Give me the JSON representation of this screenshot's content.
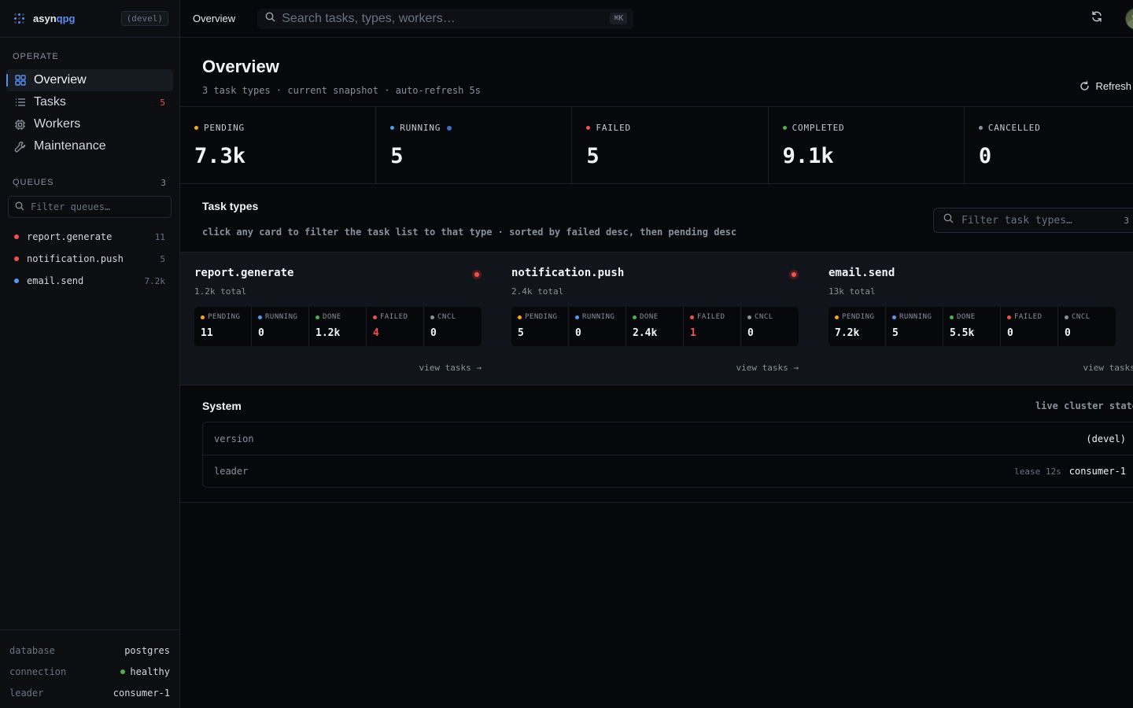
{
  "brand": {
    "name_prefix": "asyn",
    "name_accent": "qpg",
    "env": "(devel)"
  },
  "colors": {
    "accent": "#5b8def",
    "pending": "#f5a623",
    "running": "#4f9cf0",
    "failed": "#ef5350",
    "completed": "#4caf50",
    "cancelled": "#8a909c"
  },
  "sidebar": {
    "operate_label": "OPERATE",
    "nav": [
      {
        "label": "Overview",
        "icon": "grid-icon",
        "active": true,
        "count": ""
      },
      {
        "label": "Tasks",
        "icon": "list-icon",
        "count": "5"
      },
      {
        "label": "Workers",
        "icon": "cpu-icon",
        "count": ""
      },
      {
        "label": "Maintenance",
        "icon": "wrench-icon",
        "count": ""
      }
    ],
    "queues_label": "QUEUES",
    "queues_count": "3",
    "queue_filter_placeholder": "Filter queues…",
    "queues": [
      {
        "name": "report.generate",
        "count": "11",
        "status": "failed"
      },
      {
        "name": "notification.push",
        "count": "5",
        "status": "failed"
      },
      {
        "name": "email.send",
        "count": "7.2k",
        "status": "running"
      }
    ],
    "footer": [
      {
        "key": "database",
        "value": "postgres"
      },
      {
        "key": "connection",
        "value": "healthy",
        "status": "completed"
      },
      {
        "key": "leader",
        "value": "consumer-1"
      }
    ]
  },
  "topbar": {
    "crumb": "Overview",
    "search_placeholder": "Search tasks, types, workers…",
    "shortcut": "⌘K"
  },
  "header": {
    "title": "Overview",
    "subtitle": "3 task types · current snapshot · auto-refresh 5s",
    "refresh_label": "Refresh"
  },
  "stats": [
    {
      "label": "PENDING",
      "value": "7.3k",
      "status": "pending"
    },
    {
      "label": "RUNNING",
      "value": "5",
      "status": "running",
      "live": true
    },
    {
      "label": "FAILED",
      "value": "5",
      "status": "failed"
    },
    {
      "label": "COMPLETED",
      "value": "9.1k",
      "status": "completed"
    },
    {
      "label": "CANCELLED",
      "value": "0",
      "status": "cancelled"
    }
  ],
  "task_types": {
    "title": "Task types",
    "hint": "click any card to filter the task list to that type · sorted by failed desc, then pending desc",
    "filter_placeholder": "Filter task types…",
    "count": "3",
    "view_label": "view tasks →",
    "mini_labels": [
      "PENDING",
      "RUNNING",
      "DONE",
      "FAILED",
      "CNCL"
    ],
    "cards": [
      {
        "name": "report.generate",
        "total": "1.2k total",
        "health": "failed",
        "values": [
          "11",
          "0",
          "1.2k",
          "4",
          "0"
        ]
      },
      {
        "name": "notification.push",
        "total": "2.4k total",
        "health": "failed",
        "values": [
          "5",
          "0",
          "2.4k",
          "1",
          "0"
        ]
      },
      {
        "name": "email.send",
        "total": "13k total",
        "health": "pending",
        "values": [
          "7.2k",
          "5",
          "5.5k",
          "0",
          "0"
        ]
      }
    ]
  },
  "system": {
    "title": "System",
    "meta": "live cluster state",
    "version_key": "version",
    "version_value": "(devel)",
    "leader_key": "leader",
    "leader_lease": "lease 12s",
    "leader_value": "consumer-1"
  }
}
